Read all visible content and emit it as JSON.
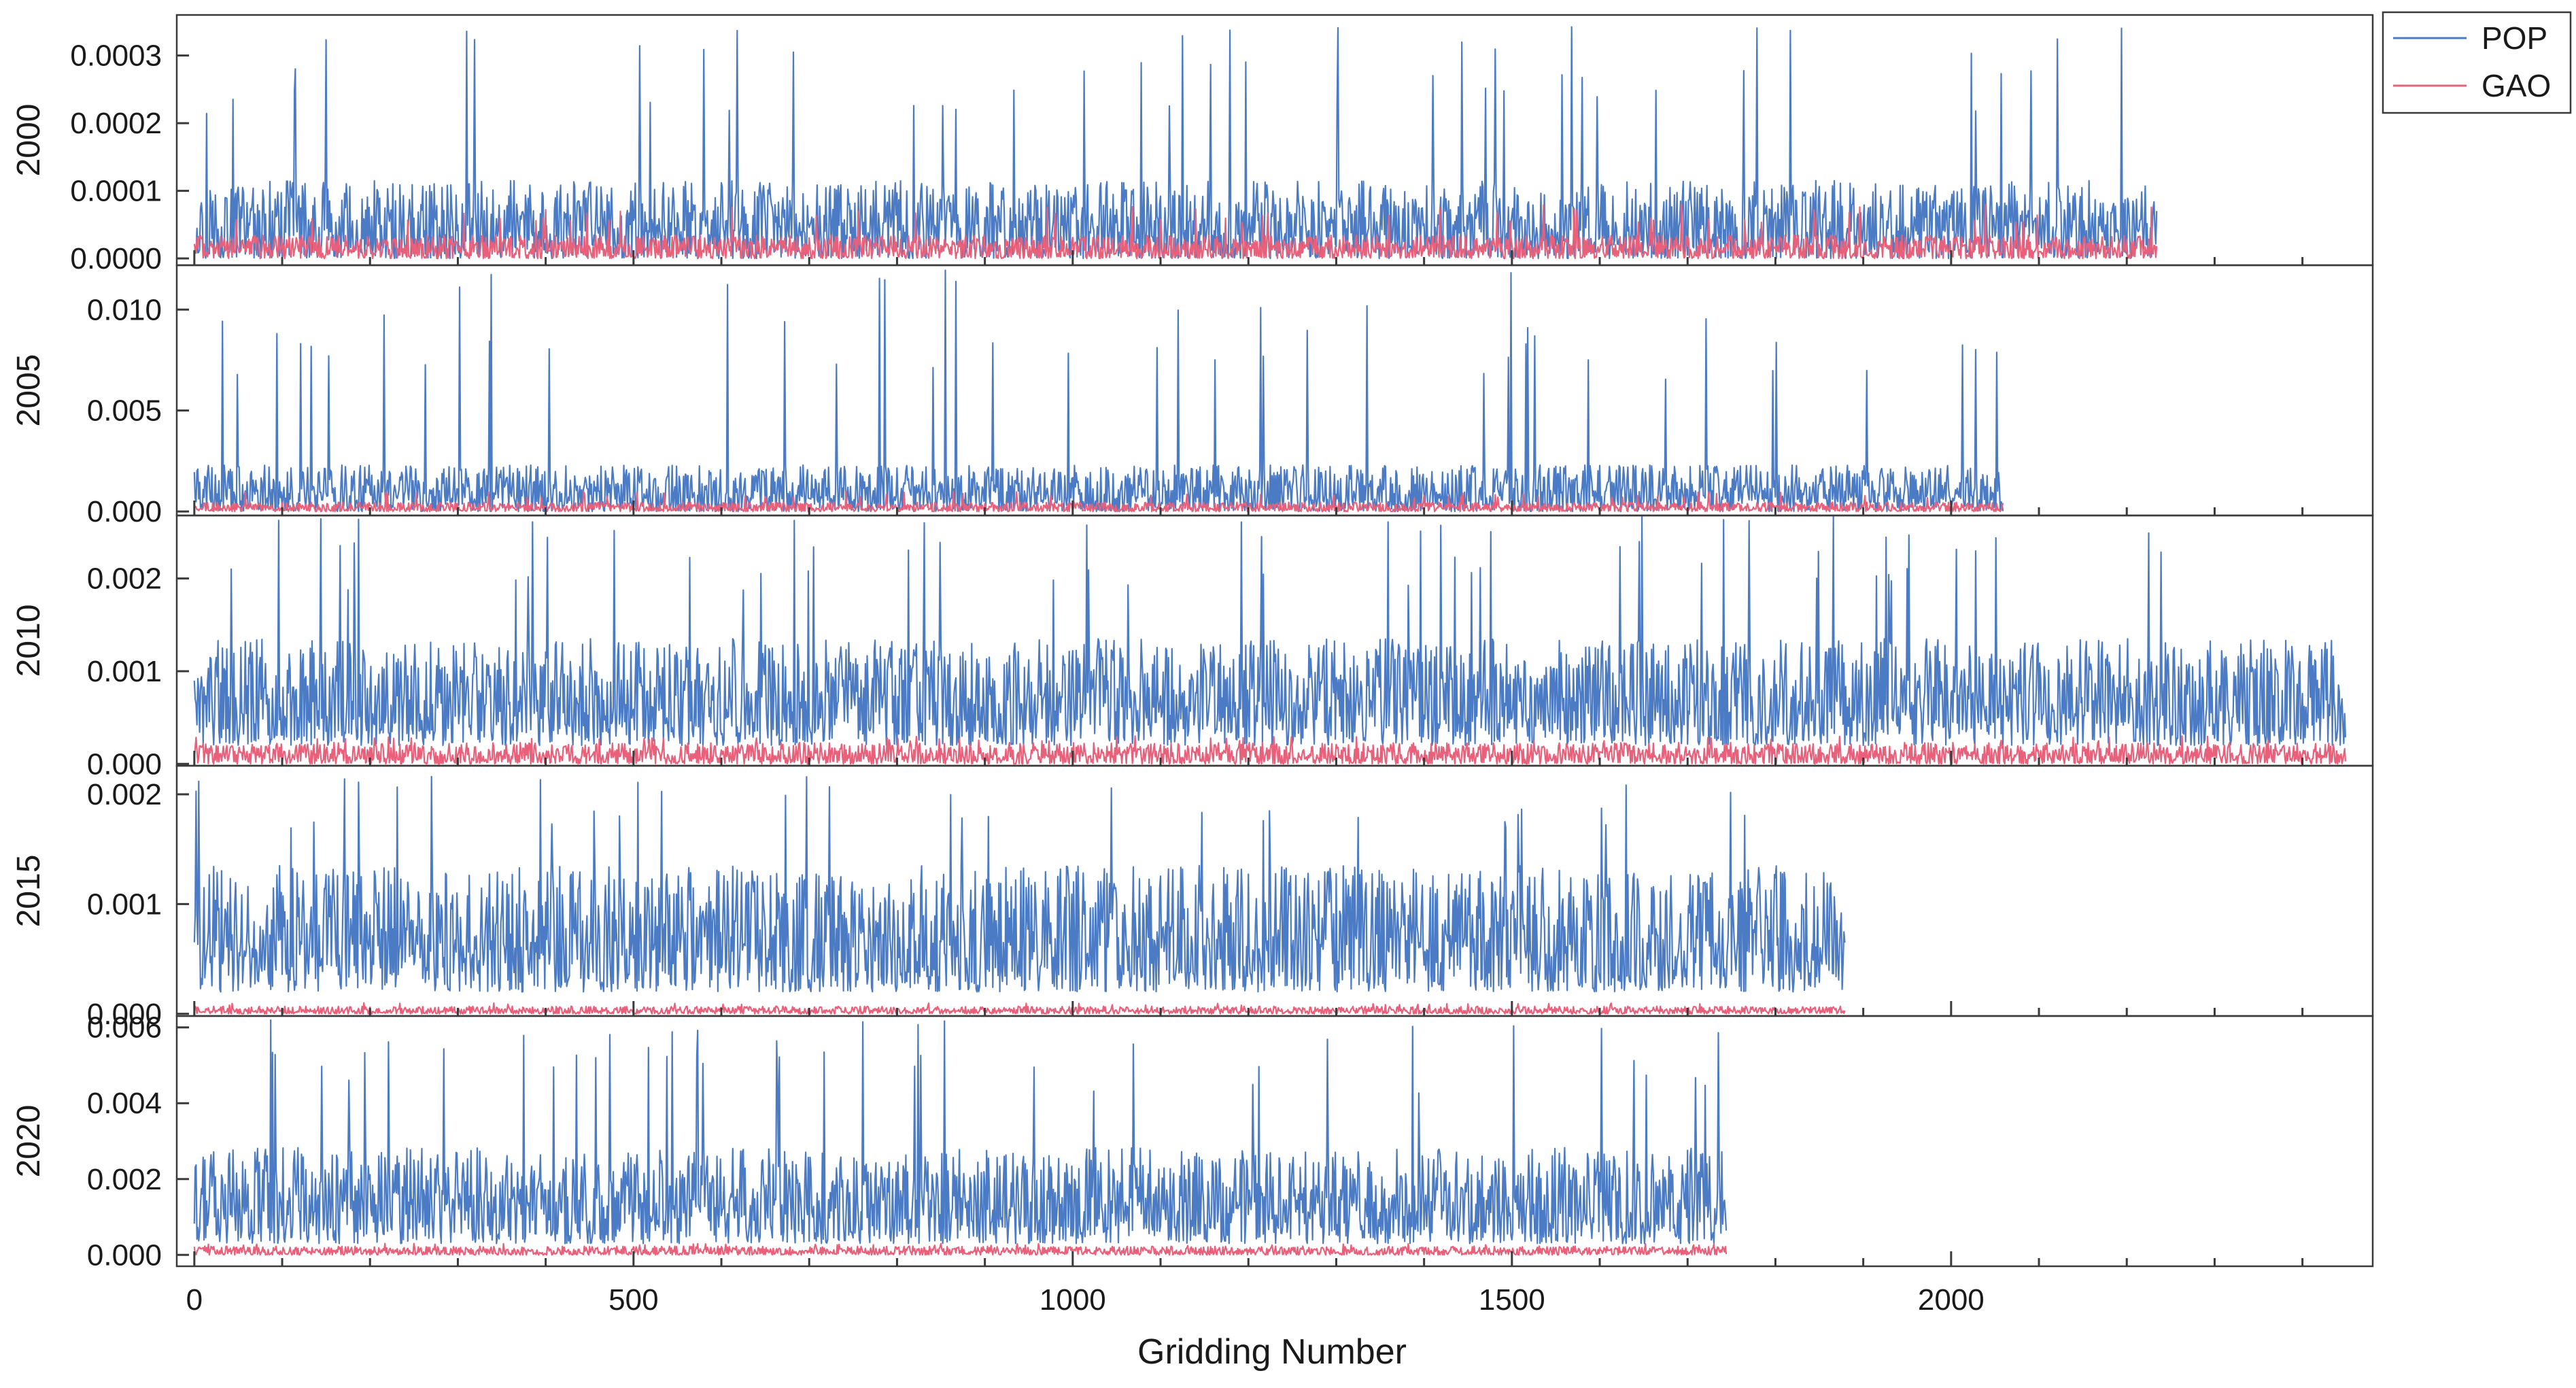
{
  "chart_data": {
    "type": "line",
    "layout": "stacked-panels",
    "xlabel": "Gridding Number",
    "xlim": [
      -20,
      2480
    ],
    "xticks": [
      0,
      500,
      1000,
      1500,
      2000
    ],
    "xtick_labels": [
      "0",
      "500",
      "1000",
      "1500",
      "2000"
    ],
    "legend": {
      "position": "top-right",
      "entries": [
        {
          "name": "POP",
          "color": "#4a7bc4"
        },
        {
          "name": "GAO",
          "color": "#e8607a"
        }
      ]
    },
    "panels": [
      {
        "ylabel": "2000",
        "ylim": [
          -1e-05,
          0.00036
        ],
        "yticks": [
          0.0,
          0.0001,
          0.0002,
          0.0003
        ],
        "ytick_labels": [
          "0.0000",
          "0.0001",
          "0.0002",
          "0.0003"
        ],
        "n_points": 2235,
        "series": [
          {
            "name": "POP",
            "typical_range": [
              0.0,
              0.0001
            ],
            "peak": 0.00035
          },
          {
            "name": "GAO",
            "typical_range": [
              0.0,
              3e-05
            ],
            "peak": 8e-05
          }
        ]
      },
      {
        "ylabel": "2005",
        "ylim": [
          -0.0002,
          0.0122
        ],
        "yticks": [
          0.0,
          0.005,
          0.01
        ],
        "ytick_labels": [
          "0.000",
          "0.005",
          "0.010"
        ],
        "n_points": 2060,
        "series": [
          {
            "name": "POP",
            "typical_range": [
              0.0,
              0.002
            ],
            "peak": 0.012
          },
          {
            "name": "GAO",
            "typical_range": [
              0.0,
              0.0004
            ],
            "peak": 0.001
          }
        ]
      },
      {
        "ylabel": "2010",
        "ylim": [
          -2e-05,
          0.00268
        ],
        "yticks": [
          0.0,
          0.001,
          0.002
        ],
        "ytick_labels": [
          "0.000",
          "0.001",
          "0.002"
        ],
        "n_points": 2450,
        "series": [
          {
            "name": "POP",
            "typical_range": [
              0.0002,
              0.0012
            ],
            "peak": 0.0027
          },
          {
            "name": "GAO",
            "typical_range": [
              0.0,
              0.0002
            ],
            "peak": 0.0003
          }
        ]
      },
      {
        "ylabel": "2015",
        "ylim": [
          -2e-05,
          0.00226
        ],
        "yticks": [
          0.0,
          0.001,
          0.002
        ],
        "ytick_labels": [
          "0.000",
          "0.001",
          "0.002"
        ],
        "n_points": 1880,
        "series": [
          {
            "name": "POP",
            "typical_range": [
              0.0002,
              0.0012
            ],
            "peak": 0.0022
          },
          {
            "name": "GAO",
            "typical_range": [
              0.0,
              6e-05
            ],
            "peak": 0.0001
          }
        ]
      },
      {
        "ylabel": "2020",
        "ylim": [
          -0.0003,
          0.0063
        ],
        "yticks": [
          0.0,
          0.002,
          0.004,
          0.006
        ],
        "ytick_labels": [
          "0.000",
          "0.002",
          "0.004",
          "0.006"
        ],
        "n_points": 1745,
        "series": [
          {
            "name": "POP",
            "typical_range": [
              0.0003,
              0.0025
            ],
            "peak": 0.0062
          },
          {
            "name": "GAO",
            "typical_range": [
              0.0,
              0.0002
            ],
            "peak": 0.0003
          }
        ]
      }
    ]
  }
}
